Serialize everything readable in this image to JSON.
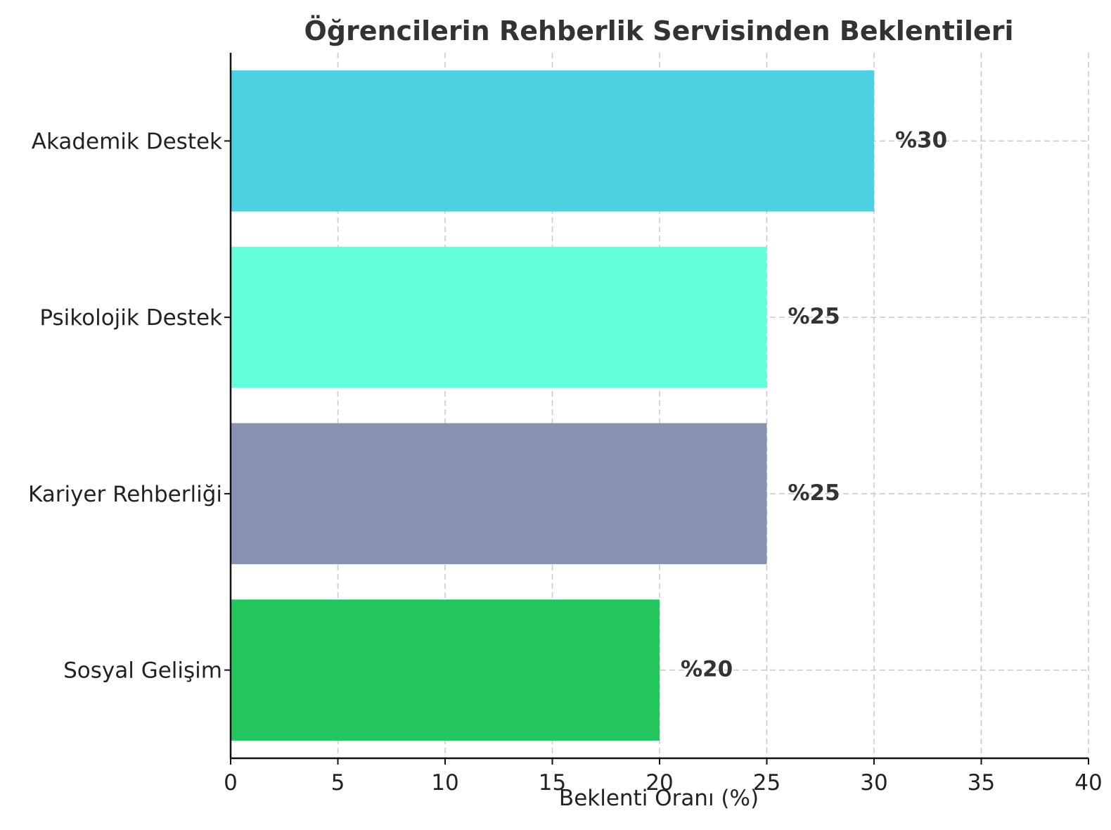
{
  "chart_data": {
    "type": "bar",
    "orientation": "horizontal",
    "title": "Öğrencilerin Rehberlik Servisinden Beklentileri",
    "xlabel": "Beklenti Oranı (%)",
    "ylabel": "",
    "xlim": [
      0,
      40
    ],
    "xticks": [
      0,
      5,
      10,
      15,
      20,
      25,
      30,
      35,
      40
    ],
    "grid": true,
    "categories": [
      "Akademik Destek",
      "Psikolojik Destek",
      "Kariyer Rehberliği",
      "Sosyal Gelişim"
    ],
    "values": [
      30,
      25,
      25,
      20
    ],
    "data_labels": [
      "%30",
      "%25",
      "%25",
      "%20"
    ],
    "colors": [
      "#4dd0e1",
      "#64ffda",
      "#8892b0",
      "#22c55e"
    ]
  }
}
